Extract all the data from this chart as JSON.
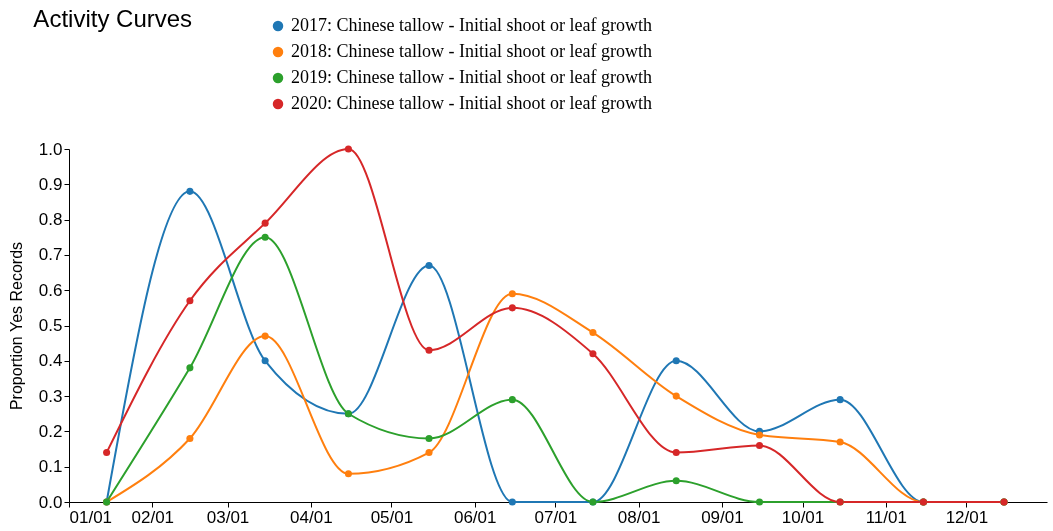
{
  "chart_data": {
    "type": "line",
    "title": "Activity Curves",
    "ylabel": "Proportion Yes Records",
    "x": [
      "--01-15",
      "--02-15",
      "--03-15",
      "--04-15",
      "--05-15",
      "--06-15",
      "--07-15",
      "--08-15",
      "--09-15",
      "--10-15",
      "--11-15",
      "--12-15"
    ],
    "series": [
      {
        "name": "2017: Chinese tallow - Initial shoot or leaf growth",
        "color": "#1f77b4",
        "values": [
          0,
          0.88,
          0.4,
          0.25,
          0.67,
          0,
          0,
          0.4,
          0.2,
          0.29,
          0,
          0
        ]
      },
      {
        "name": "2018: Chinese tallow - Initial shoot or leaf growth",
        "color": "#ff7f0e",
        "values": [
          0,
          0.18,
          0.47,
          0.08,
          0.14,
          0.59,
          0.48,
          0.3,
          0.19,
          0.17,
          0,
          0
        ]
      },
      {
        "name": "2019: Chinese tallow - Initial shoot or leaf growth",
        "color": "#2ca02c",
        "values": [
          0,
          0.38,
          0.75,
          0.25,
          0.18,
          0.29,
          0,
          0.06,
          0,
          0,
          0,
          0
        ]
      },
      {
        "name": "2020: Chinese tallow - Initial shoot or leaf growth",
        "color": "#d62728",
        "values": [
          0.14,
          0.57,
          0.79,
          1.0,
          0.43,
          0.55,
          0.42,
          0.14,
          0.16,
          0,
          0,
          0
        ]
      }
    ],
    "xlim": [
      "--01-01",
      "--12-31"
    ],
    "xticks": [
      {
        "value": "--01-01",
        "label": "01/01"
      },
      {
        "value": "--02-01",
        "label": "02/01"
      },
      {
        "value": "--03-01",
        "label": "03/01"
      },
      {
        "value": "--04-01",
        "label": "04/01"
      },
      {
        "value": "--05-01",
        "label": "05/01"
      },
      {
        "value": "--06-01",
        "label": "06/01"
      },
      {
        "value": "--07-01",
        "label": "07/01"
      },
      {
        "value": "--08-01",
        "label": "08/01"
      },
      {
        "value": "--09-01",
        "label": "09/01"
      },
      {
        "value": "--10-01",
        "label": "10/01"
      },
      {
        "value": "--11-01",
        "label": "11/01"
      },
      {
        "value": "--12-01",
        "label": "12/01"
      }
    ],
    "ylim": [
      0,
      1
    ],
    "yticks": [
      {
        "value": 0,
        "label": "0.0"
      },
      0.1,
      0.2,
      0.3,
      0.4,
      0.5,
      0.6,
      0.7,
      0.8,
      0.9,
      {
        "value": 1,
        "label": "1.0"
      }
    ],
    "grid": false,
    "legend": "top",
    "marker": "circle",
    "line_style": "solid"
  }
}
